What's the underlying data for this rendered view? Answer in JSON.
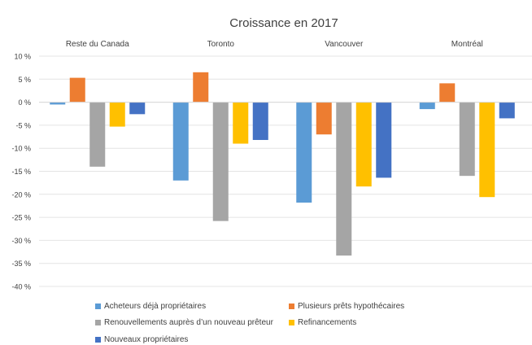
{
  "chart_data": {
    "type": "bar",
    "title": "Croissance en 2017",
    "categories": [
      "Reste du Canada",
      "Toronto",
      "Vancouver",
      "Montréal"
    ],
    "series": [
      {
        "name": "Acheteurs déjà propriétaires",
        "color": "#5B9BD5",
        "values": [
          -0.5,
          -17.0,
          -21.8,
          -1.5
        ]
      },
      {
        "name": "Plusieurs prêts hypothécaires",
        "color": "#ED7D31",
        "values": [
          5.3,
          6.5,
          -7.0,
          4.1
        ]
      },
      {
        "name": "Renouvellements auprès d’un nouveau prêteur",
        "color": "#A5A5A5",
        "values": [
          -14.0,
          -25.8,
          -33.3,
          -16.0
        ]
      },
      {
        "name": "Refinancements",
        "color": "#FFC000",
        "values": [
          -5.3,
          -9.0,
          -18.3,
          -20.6
        ]
      },
      {
        "name": "Nouveaux propriétaires",
        "color": "#4472C4",
        "values": [
          -2.6,
          -8.2,
          -16.4,
          -3.5
        ]
      }
    ],
    "ylim": [
      -40,
      10
    ],
    "yticks": [
      10,
      5,
      0,
      -5,
      -10,
      -15,
      -20,
      -25,
      -30,
      -35,
      -40
    ],
    "ytick_labels": [
      "10 %",
      "5 %",
      "0 %",
      "-5 %",
      "-10 %",
      "-15 %",
      "-20 %",
      "-25 %",
      "-30 %",
      "-35 %",
      "-40 %"
    ],
    "grid": true,
    "legend_position": "bottom"
  }
}
